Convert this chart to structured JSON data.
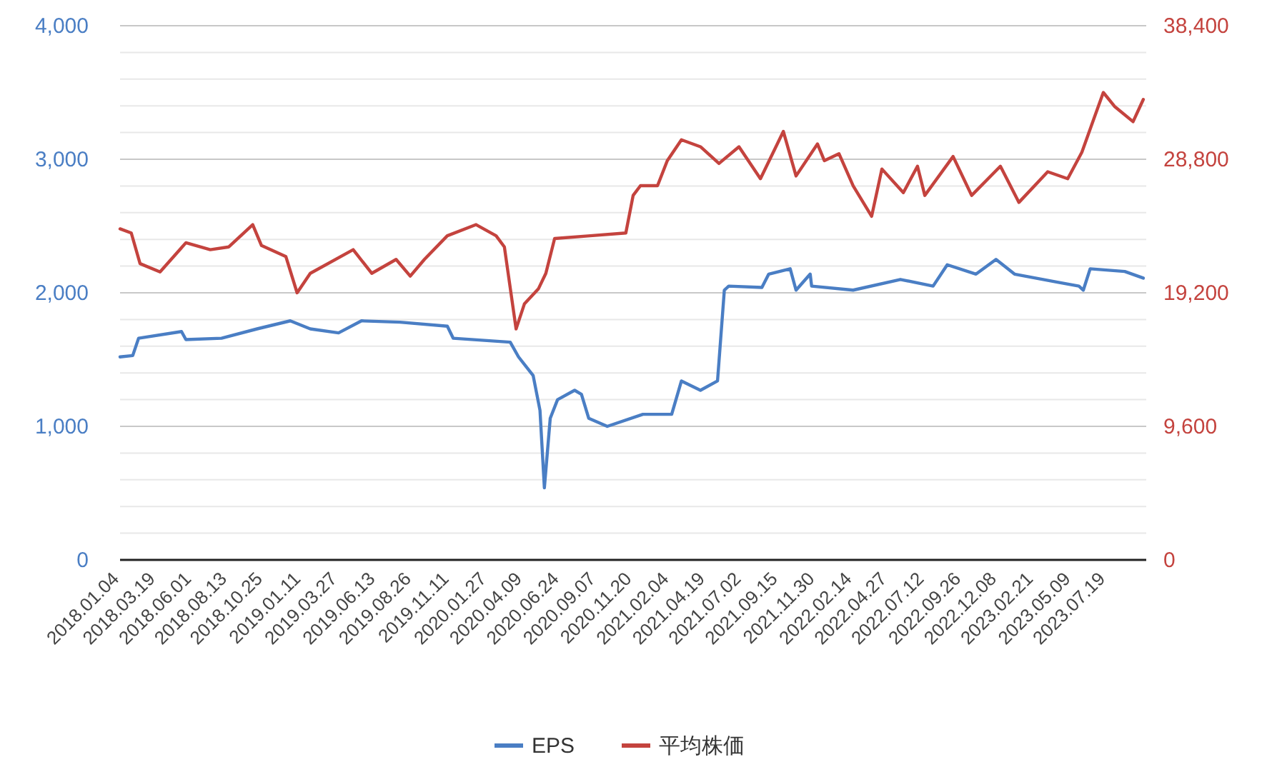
{
  "chart_data": {
    "type": "line",
    "xlim": [
      "2018-01-04",
      "2023-10-09"
    ],
    "xticks": [
      {
        "value": "2018-01-04",
        "label": "2018.01.04"
      },
      {
        "value": "2018-03-19",
        "label": "2018.03.19"
      },
      {
        "value": "2018-06-01",
        "label": "2018.06.01"
      },
      {
        "value": "2018-08-13",
        "label": "2018.08.13"
      },
      {
        "value": "2018-10-25",
        "label": "2018.10.25"
      },
      {
        "value": "2019-01-11",
        "label": "2019.01.11"
      },
      {
        "value": "2019-03-27",
        "label": "2019.03.27"
      },
      {
        "value": "2019-06-13",
        "label": "2019.06.13"
      },
      {
        "value": "2019-08-26",
        "label": "2019.08.26"
      },
      {
        "value": "2019-11-11",
        "label": "2019.11.11"
      },
      {
        "value": "2020-01-27",
        "label": "2020.01.27"
      },
      {
        "value": "2020-04-09",
        "label": "2020.04.09"
      },
      {
        "value": "2020-06-24",
        "label": "2020.06.24"
      },
      {
        "value": "2020-09-07",
        "label": "2020.09.07"
      },
      {
        "value": "2020-11-20",
        "label": "2020.11.20"
      },
      {
        "value": "2021-02-04",
        "label": "2021.02.04"
      },
      {
        "value": "2021-04-19",
        "label": "2021.04.19"
      },
      {
        "value": "2021-07-02",
        "label": "2021.07.02"
      },
      {
        "value": "2021-09-15",
        "label": "2021.09.15"
      },
      {
        "value": "2021-11-30",
        "label": "2021.11.30"
      },
      {
        "value": "2022-02-14",
        "label": "2022.02.14"
      },
      {
        "value": "2022-04-27",
        "label": "2022.04.27"
      },
      {
        "value": "2022-07-12",
        "label": "2022.07.12"
      },
      {
        "value": "2022-09-26",
        "label": "2022.09.26"
      },
      {
        "value": "2022-12-08",
        "label": "2022.12.08"
      },
      {
        "value": "2023-02-21",
        "label": "2023.02.21"
      },
      {
        "value": "2023-05-09",
        "label": "2023.05.09"
      },
      {
        "value": "2023-07-19",
        "label": "2023.07.19"
      }
    ],
    "ylim": [
      0,
      4000
    ],
    "yticks": [
      0,
      {
        "value": 200,
        "label": null
      },
      {
        "value": 400,
        "label": null
      },
      {
        "value": 600,
        "label": null
      },
      {
        "value": 800,
        "label": null
      },
      {
        "value": 1000,
        "label": "1,000"
      },
      {
        "value": 1200,
        "label": null
      },
      {
        "value": 1400,
        "label": null
      },
      {
        "value": 1600,
        "label": null
      },
      {
        "value": 1800,
        "label": null
      },
      {
        "value": 2000,
        "label": "2,000"
      },
      {
        "value": 2200,
        "label": null
      },
      {
        "value": 2400,
        "label": null
      },
      {
        "value": 2600,
        "label": null
      },
      {
        "value": 2800,
        "label": null
      },
      {
        "value": 3000,
        "label": "3,000"
      },
      {
        "value": 3200,
        "label": null
      },
      {
        "value": 3400,
        "label": null
      },
      {
        "value": 3600,
        "label": null
      },
      {
        "value": 3800,
        "label": null
      },
      {
        "value": 4000,
        "label": "4,000"
      }
    ],
    "y2lim": [
      0,
      38400
    ],
    "y2ticks": [
      0,
      {
        "value": 9600,
        "label": "9,600"
      },
      {
        "value": 19200,
        "label": "19,200"
      },
      {
        "value": 28800,
        "label": "28,800"
      },
      {
        "value": 38400,
        "label": "38,400"
      }
    ],
    "grid": "y",
    "legend": "bottom",
    "line_style": "solid",
    "series": [
      {
        "name": "EPS",
        "color": "#4a7ec4",
        "x": [
          "2018-01-04",
          "2018-01-30",
          "2018-02-11",
          "2018-05-10",
          "2018-05-19",
          "2018-07-31",
          "2018-10-12",
          "2018-12-19",
          "2019-01-29",
          "2019-03-28",
          "2019-05-14",
          "2019-08-01",
          "2019-11-06",
          "2019-11-18",
          "2020-03-14",
          "2020-03-31",
          "2020-04-30",
          "2020-05-14",
          "2020-05-23",
          "2020-06-04",
          "2020-06-19",
          "2020-07-24",
          "2020-08-07",
          "2020-08-22",
          "2020-09-29",
          "2020-12-11",
          "2021-02-08",
          "2021-02-28",
          "2021-04-08",
          "2021-05-13",
          "2021-05-27",
          "2021-06-05",
          "2021-08-12",
          "2021-08-26",
          "2021-10-09",
          "2021-10-21",
          "2021-11-19",
          "2021-11-22",
          "2022-02-15",
          "2022-05-23",
          "2022-07-29",
          "2022-08-27",
          "2022-10-25",
          "2022-12-05",
          "2023-01-12",
          "2023-04-10",
          "2023-05-24",
          "2023-06-02",
          "2023-06-16",
          "2023-08-26",
          "2023-10-03"
        ],
        "values": [
          1520,
          1530,
          1660,
          1710,
          1650,
          1660,
          1730,
          1790,
          1730,
          1700,
          1790,
          1780,
          1750,
          1660,
          1630,
          1520,
          1380,
          1120,
          540,
          1060,
          1200,
          1270,
          1240,
          1060,
          1000,
          1090,
          1090,
          1340,
          1270,
          1340,
          2020,
          2050,
          2040,
          2140,
          2180,
          2020,
          2140,
          2050,
          2020,
          2100,
          2050,
          2210,
          2140,
          2250,
          2140,
          2080,
          2050,
          2020,
          2180,
          2160,
          2110
        ]
      },
      {
        "name": "平均株価",
        "color": "#c4433e",
        "axis": "y2",
        "x": [
          "2018-01-04",
          "2018-01-27",
          "2018-02-14",
          "2018-03-27",
          "2018-05-19",
          "2018-07-08",
          "2018-08-15",
          "2018-10-03",
          "2018-10-21",
          "2018-12-10",
          "2019-01-02",
          "2019-01-29",
          "2019-04-27",
          "2019-06-04",
          "2019-07-24",
          "2019-08-22",
          "2019-09-20",
          "2019-11-06",
          "2020-01-04",
          "2020-02-14",
          "2020-03-02",
          "2020-03-26",
          "2020-04-12",
          "2020-05-11",
          "2020-05-26",
          "2020-06-13",
          "2020-08-25",
          "2020-11-06",
          "2020-11-21",
          "2020-12-06",
          "2021-01-10",
          "2021-01-30",
          "2021-02-28",
          "2021-04-08",
          "2021-05-16",
          "2021-06-26",
          "2021-08-09",
          "2021-09-25",
          "2021-10-21",
          "2021-12-04",
          "2021-12-18",
          "2022-01-17",
          "2022-02-15",
          "2022-03-25",
          "2022-04-15",
          "2022-05-29",
          "2022-06-27",
          "2022-07-12",
          "2022-09-08",
          "2022-10-16",
          "2022-12-14",
          "2023-01-21",
          "2023-03-21",
          "2023-05-01",
          "2023-05-30",
          "2023-07-13",
          "2023-08-05",
          "2023-09-12",
          "2023-10-03"
        ],
        "values": [
          23800,
          23500,
          21300,
          20700,
          22800,
          22300,
          22500,
          24100,
          22600,
          21800,
          19200,
          20600,
          22300,
          20600,
          21600,
          20400,
          21600,
          23300,
          24100,
          23300,
          22500,
          16600,
          18400,
          19500,
          20600,
          23100,
          23300,
          23500,
          26200,
          26900,
          26900,
          28700,
          30200,
          29700,
          28500,
          29700,
          27400,
          30800,
          27600,
          29900,
          28700,
          29200,
          26900,
          24700,
          28100,
          26400,
          28300,
          26200,
          29000,
          26200,
          28300,
          25700,
          27900,
          27400,
          29300,
          33600,
          32600,
          31500,
          33100
        ]
      }
    ]
  }
}
